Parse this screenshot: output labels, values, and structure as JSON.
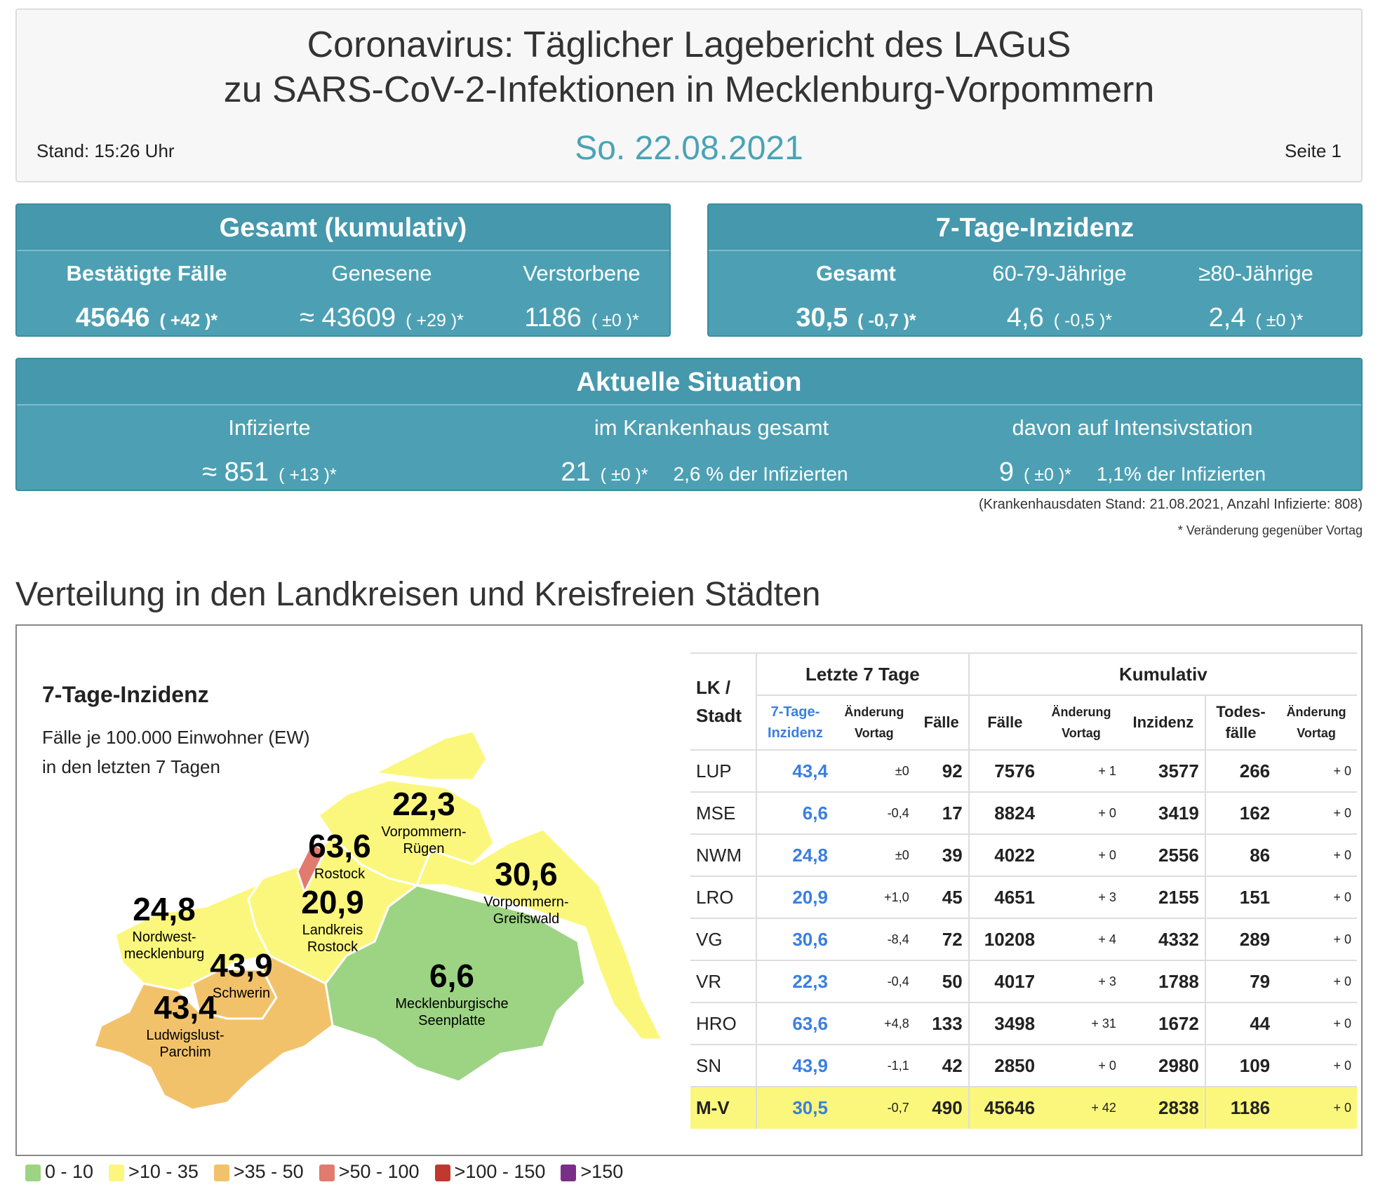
{
  "header": {
    "title1": "Coronavirus: Täglicher Lagebericht des LAGuS",
    "title2": "zu SARS-CoV-2-Infektionen in Mecklenburg-Vorpommern",
    "stand": "Stand: 15:26 Uhr",
    "date": "So. 22.08.2021",
    "page": "Seite 1"
  },
  "gesamt": {
    "title": "Gesamt (kumulativ)",
    "cols": [
      {
        "label": "Bestätigte Fälle",
        "value": "45646",
        "delta": "( +42 )*"
      },
      {
        "label": "Genesene",
        "value": "≈ 43609",
        "delta": "( +29 )*"
      },
      {
        "label": "Verstorbene",
        "value": "1186",
        "delta": "( ±0 )*"
      }
    ]
  },
  "inzidenz": {
    "title": "7-Tage-Inzidenz",
    "cols": [
      {
        "label": "Gesamt",
        "value": "30,5",
        "delta": "( -0,7 )*"
      },
      {
        "label": "60-79-Jährige",
        "value": "4,6",
        "delta": "( -0,5 )*"
      },
      {
        "label": "≥80-Jährige",
        "value": "2,4",
        "delta": "( ±0 )*"
      }
    ]
  },
  "aktuell": {
    "title": "Aktuelle Situation",
    "cols": [
      {
        "label": "Infizierte",
        "value": "≈ 851",
        "delta": "( +13 )*",
        "extra": ""
      },
      {
        "label": "im Krankenhaus gesamt",
        "value": "21",
        "delta": "( ±0 )*",
        "extra": "2,6 % der Infizierten"
      },
      {
        "label": "davon auf Intensivstation",
        "value": "9",
        "delta": "( ±0 )*",
        "extra": "1,1% der Infizierten"
      }
    ]
  },
  "notes": {
    "hospital": "(Krankenhausdaten Stand: 21.08.2021, Anzahl Infizierte: 808)",
    "change": "* Veränderung gegenüber Vortag"
  },
  "section_title": "Verteilung in den Landkreisen und Kreisfreien Städten",
  "map": {
    "title": "7-Tage-Inzidenz",
    "sub1": "Fälle je 100.000 Einwohner (EW)",
    "sub2": "in den letzten 7 Tagen",
    "regions": [
      {
        "value": "22,3",
        "name1": "Vorpommern-",
        "name2": "Rügen"
      },
      {
        "value": "63,6",
        "name1": "Rostock",
        "name2": ""
      },
      {
        "value": "30,6",
        "name1": "Vorpommern-",
        "name2": "Greifswald"
      },
      {
        "value": "24,8",
        "name1": "Nordwest-",
        "name2": "mecklenburg"
      },
      {
        "value": "20,9",
        "name1": "Landkreis",
        "name2": "Rostock"
      },
      {
        "value": "43,9",
        "name1": "Schwerin",
        "name2": ""
      },
      {
        "value": "6,6",
        "name1": "Mecklenburgische",
        "name2": "Seenplatte"
      },
      {
        "value": "43,4",
        "name1": "Ludwigslust-",
        "name2": "Parchim"
      }
    ]
  },
  "table": {
    "h_lk": "LK /",
    "h_stadt": "Stadt",
    "h_last7": "Letzte 7 Tage",
    "h_kum": "Kumulativ",
    "h_inz1": "7-Tage-",
    "h_inz2": "Inzidenz",
    "h_aend1": "Änderung",
    "h_aend2": "Vortag",
    "h_faelle": "Fälle",
    "h_inzidenz": "Inzidenz",
    "h_tod1": "Todes-",
    "h_tod2": "fälle",
    "rows": [
      [
        "LUP",
        "43,4",
        "±0",
        "92",
        "7576",
        "+ 1",
        "3577",
        "266",
        "+ 0"
      ],
      [
        "MSE",
        "6,6",
        "-0,4",
        "17",
        "8824",
        "+ 0",
        "3419",
        "162",
        "+ 0"
      ],
      [
        "NWM",
        "24,8",
        "±0",
        "39",
        "4022",
        "+ 0",
        "2556",
        "86",
        "+ 0"
      ],
      [
        "LRO",
        "20,9",
        "+1,0",
        "45",
        "4651",
        "+ 3",
        "2155",
        "151",
        "+ 0"
      ],
      [
        "VG",
        "30,6",
        "-8,4",
        "72",
        "10208",
        "+ 4",
        "4332",
        "289",
        "+ 0"
      ],
      [
        "VR",
        "22,3",
        "-0,4",
        "50",
        "4017",
        "+ 3",
        "1788",
        "79",
        "+ 0"
      ],
      [
        "HRO",
        "63,6",
        "+4,8",
        "133",
        "3498",
        "+ 31",
        "1672",
        "44",
        "+ 0"
      ],
      [
        "SN",
        "43,9",
        "-1,1",
        "42",
        "2850",
        "+ 0",
        "2980",
        "109",
        "+ 0"
      ],
      [
        "M-V",
        "30,5",
        "-0,7",
        "490",
        "45646",
        "+ 42",
        "2838",
        "1186",
        "+ 0"
      ]
    ]
  },
  "legend": [
    {
      "label": "0 - 10",
      "color": "#9dd484"
    },
    {
      "label": ">10 - 35",
      "color": "#fbf77c"
    },
    {
      "label": ">35 - 50",
      "color": "#f2c26b"
    },
    {
      "label": ">50 - 100",
      "color": "#e07b6e"
    },
    {
      "label": ">100 - 150",
      "color": "#c0392f"
    },
    {
      "label": ">150",
      "color": "#7a2f86"
    }
  ]
}
